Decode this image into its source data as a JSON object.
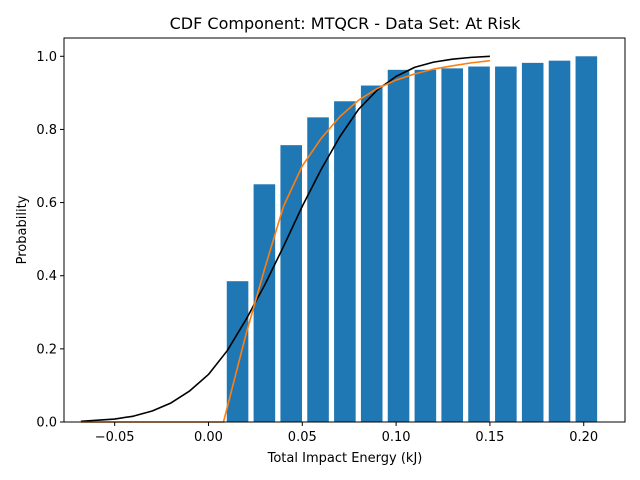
{
  "chart_data": {
    "type": "bar",
    "title": "CDF Component: MTQCR - Data Set: At Risk",
    "xlabel": "Total Impact Energy (kJ)",
    "ylabel": "Probability",
    "xlim": [
      -0.077,
      0.222
    ],
    "ylim": [
      0,
      1.05
    ],
    "xticks": [
      -0.05,
      0.0,
      0.05,
      0.1,
      0.15,
      0.2
    ],
    "xtick_labels": [
      "−0.05",
      "0.00",
      "0.05",
      "0.10",
      "0.15",
      "0.20"
    ],
    "yticks": [
      0.0,
      0.2,
      0.4,
      0.6,
      0.8,
      1.0
    ],
    "ytick_labels": [
      "0.0",
      "0.2",
      "0.4",
      "0.6",
      "0.8",
      "1.0"
    ],
    "grid": false,
    "bar_width": 0.0115,
    "bars": {
      "x": [
        0.0155,
        0.0298,
        0.0441,
        0.0584,
        0.0727,
        0.087,
        0.1013,
        0.1156,
        0.1299,
        0.1442,
        0.1585,
        0.1728,
        0.1871,
        0.2014
      ],
      "values": [
        0.385,
        0.65,
        0.757,
        0.833,
        0.877,
        0.92,
        0.963,
        0.963,
        0.967,
        0.972,
        0.972,
        0.982,
        0.988,
        1.0
      ],
      "color": "#1f77b4"
    },
    "series": [
      {
        "color": "#000000",
        "x": [
          -0.068,
          -0.05,
          -0.04,
          -0.03,
          -0.02,
          -0.01,
          0.0,
          0.01,
          0.02,
          0.03,
          0.04,
          0.05,
          0.06,
          0.07,
          0.08,
          0.09,
          0.1,
          0.11,
          0.12,
          0.13,
          0.14,
          0.15
        ],
        "y": [
          0.002,
          0.008,
          0.016,
          0.03,
          0.052,
          0.085,
          0.13,
          0.195,
          0.28,
          0.375,
          0.48,
          0.59,
          0.69,
          0.78,
          0.855,
          0.908,
          0.945,
          0.97,
          0.984,
          0.992,
          0.997,
          1.0
        ]
      },
      {
        "color": "#ff7f0e",
        "x": [
          -0.068,
          0.0,
          0.008,
          0.012,
          0.016,
          0.02,
          0.025,
          0.03,
          0.04,
          0.05,
          0.06,
          0.07,
          0.08,
          0.09,
          0.1,
          0.11,
          0.12,
          0.13,
          0.14,
          0.15
        ],
        "y": [
          0.0,
          0.0,
          0.0,
          0.08,
          0.16,
          0.24,
          0.33,
          0.42,
          0.59,
          0.7,
          0.775,
          0.835,
          0.88,
          0.912,
          0.935,
          0.952,
          0.965,
          0.974,
          0.982,
          0.988
        ]
      }
    ]
  }
}
